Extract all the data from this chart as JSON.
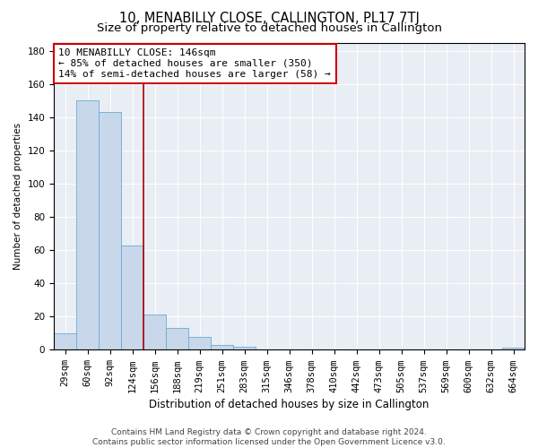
{
  "title": "10, MENABILLY CLOSE, CALLINGTON, PL17 7TJ",
  "subtitle": "Size of property relative to detached houses in Callington",
  "xlabel": "Distribution of detached houses by size in Callington",
  "ylabel": "Number of detached properties",
  "categories": [
    "29sqm",
    "60sqm",
    "92sqm",
    "124sqm",
    "156sqm",
    "188sqm",
    "219sqm",
    "251sqm",
    "283sqm",
    "315sqm",
    "346sqm",
    "378sqm",
    "410sqm",
    "442sqm",
    "473sqm",
    "505sqm",
    "537sqm",
    "569sqm",
    "600sqm",
    "632sqm",
    "664sqm"
  ],
  "values": [
    10,
    150,
    143,
    63,
    21,
    13,
    8,
    3,
    2,
    0,
    0,
    0,
    0,
    0,
    0,
    0,
    0,
    0,
    0,
    0,
    1
  ],
  "bar_color": "#c8d8ea",
  "bar_edge_color": "#6aaad4",
  "vline_color": "#aa0000",
  "annotation_text": "10 MENABILLY CLOSE: 146sqm\n← 85% of detached houses are smaller (350)\n14% of semi-detached houses are larger (58) →",
  "annotation_box_color": "#cc0000",
  "background_color": "#e8eef4",
  "grid_color": "#ffffff",
  "footer": "Contains HM Land Registry data © Crown copyright and database right 2024.\nContains public sector information licensed under the Open Government Licence v3.0.",
  "ylim": [
    0,
    185
  ],
  "yticks": [
    0,
    20,
    40,
    60,
    80,
    100,
    120,
    140,
    160,
    180
  ],
  "title_fontsize": 10.5,
  "subtitle_fontsize": 9.5,
  "xlabel_fontsize": 8.5,
  "ylabel_fontsize": 7.5,
  "tick_fontsize": 7.5,
  "annotation_fontsize": 8,
  "footer_fontsize": 6.5,
  "vline_xindex": 3.5
}
